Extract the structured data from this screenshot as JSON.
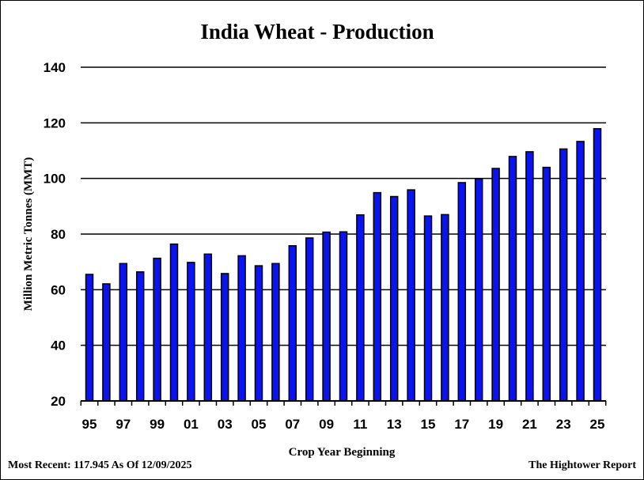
{
  "chart_data": {
    "type": "bar",
    "title": "India Wheat - Production",
    "ylabel": "Million Metric Tonnes (MMT)",
    "xlabel": "Crop Year Beginning",
    "ylim": [
      20,
      140
    ],
    "yticks": [
      20,
      40,
      60,
      80,
      100,
      120,
      140
    ],
    "grid": true,
    "bar_color": "#0a14f0",
    "categories": [
      "95",
      "96",
      "97",
      "98",
      "99",
      "00",
      "01",
      "02",
      "03",
      "04",
      "05",
      "06",
      "07",
      "08",
      "09",
      "10",
      "11",
      "12",
      "13",
      "14",
      "15",
      "16",
      "17",
      "18",
      "19",
      "20",
      "21",
      "22",
      "23",
      "24",
      "25"
    ],
    "xtick_labels": [
      "95",
      "97",
      "99",
      "01",
      "03",
      "05",
      "07",
      "09",
      "11",
      "13",
      "15",
      "17",
      "19",
      "21",
      "23",
      "25"
    ],
    "series": [
      {
        "values": [
          65.5,
          62.1,
          69.4,
          66.4,
          71.3,
          76.4,
          69.8,
          72.8,
          65.8,
          72.2,
          68.6,
          69.4,
          75.8,
          78.6,
          80.7,
          80.8,
          86.9,
          94.9,
          93.5,
          95.9,
          86.5,
          87.0,
          98.5,
          99.9,
          103.6,
          107.9,
          109.6,
          104.0,
          110.6,
          113.3,
          117.9
        ]
      }
    ]
  },
  "footer": {
    "most_recent": "Most Recent: 117.945 As Of 12/09/2025",
    "source": "The Hightower Report"
  }
}
